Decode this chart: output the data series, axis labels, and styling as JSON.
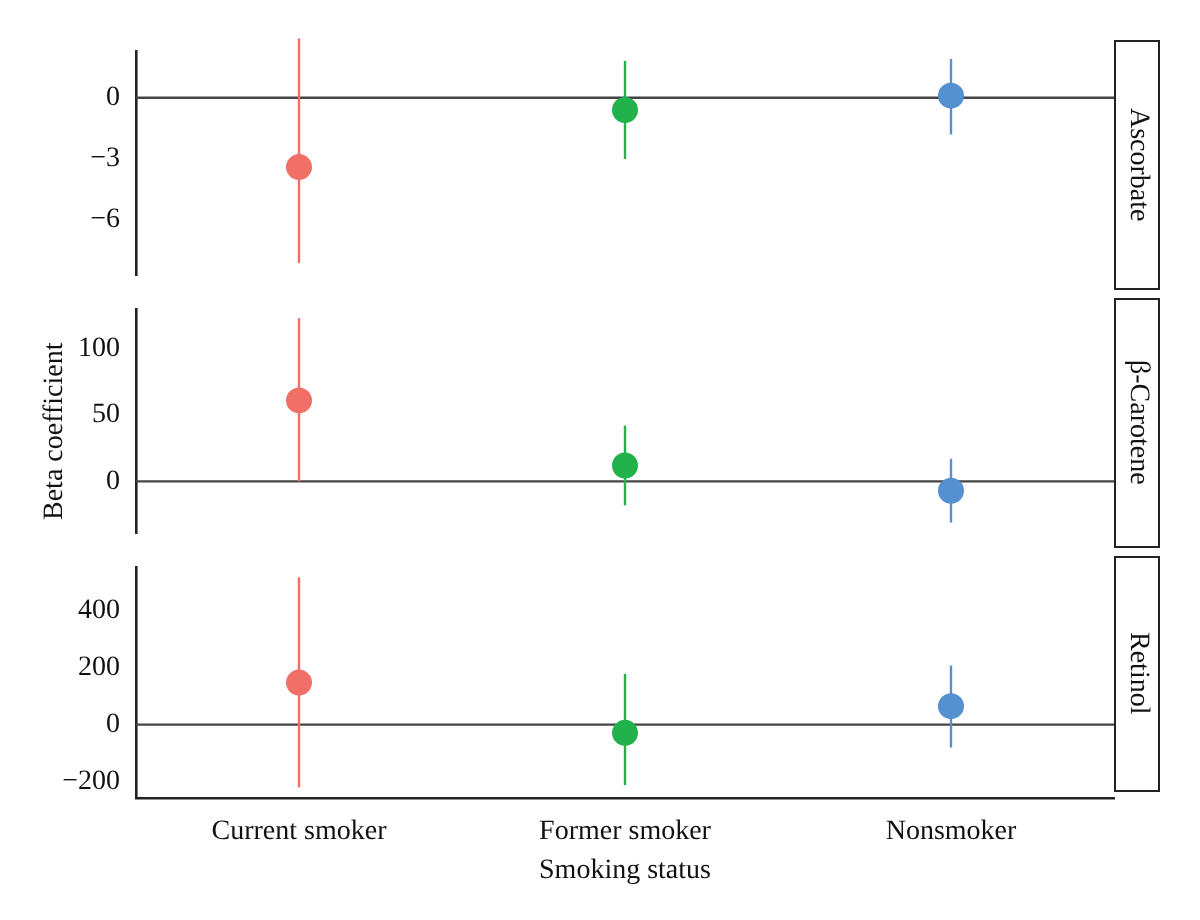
{
  "chart_data": [
    {
      "type": "scatter",
      "title": "Ascorbate",
      "categories": [
        null,
        null,
        null
      ],
      "values": [
        -3.4,
        -0.6,
        0.1
      ],
      "errors": [
        [
          -8.1,
          2.9
        ],
        [
          -3.0,
          1.8
        ],
        [
          -1.8,
          1.9
        ]
      ],
      "colors": [
        "#f07068",
        "#22b24c",
        "#5590d0"
      ],
      "ylim": [
        -8.7,
        2.3
      ],
      "yticks": [
        {
          "value": 0,
          "label": "0"
        },
        {
          "value": -3,
          "label": "−3"
        },
        {
          "value": -6,
          "label": "−6"
        }
      ],
      "ref_lines": [
        {
          "axis": "y",
          "value": 0,
          "color": "#444444"
        }
      ],
      "tick_labels": "y",
      "marker": "circle",
      "grid": false,
      "legend": false
    },
    {
      "type": "scatter",
      "title": "β-Carotene",
      "ylabel": "Beta coefficient",
      "categories": [
        null,
        null,
        null
      ],
      "values": [
        61,
        12,
        -7
      ],
      "errors": [
        [
          0,
          123
        ],
        [
          -18,
          42
        ],
        [
          -31,
          17
        ]
      ],
      "colors": [
        "#f07068",
        "#22b24c",
        "#5590d0"
      ],
      "ylim": [
        -39,
        130
      ],
      "yticks": [
        0,
        50,
        100
      ],
      "ref_lines": [
        {
          "axis": "y",
          "value": 0,
          "color": "#444444"
        }
      ],
      "tick_labels": "y",
      "marker": "circle",
      "grid": false,
      "legend": false
    },
    {
      "type": "scatter",
      "title": "Retinol",
      "xlabel": "Smoking status",
      "categories": [
        "Current smoker",
        "Former smoker",
        "Nonsmoker"
      ],
      "values": [
        148,
        -29,
        65
      ],
      "errors": [
        [
          -221,
          519
        ],
        [
          -213,
          179
        ],
        [
          -81,
          208
        ]
      ],
      "colors": [
        "#f07068",
        "#22b24c",
        "#5590d0"
      ],
      "ylim": [
        -260,
        556
      ],
      "yticks": [
        {
          "value": -200,
          "label": "−200"
        },
        0,
        200,
        400
      ],
      "ref_lines": [
        {
          "axis": "y",
          "value": 0,
          "color": "#444444"
        }
      ],
      "marker": "circle",
      "grid": false,
      "legend": false
    }
  ]
}
